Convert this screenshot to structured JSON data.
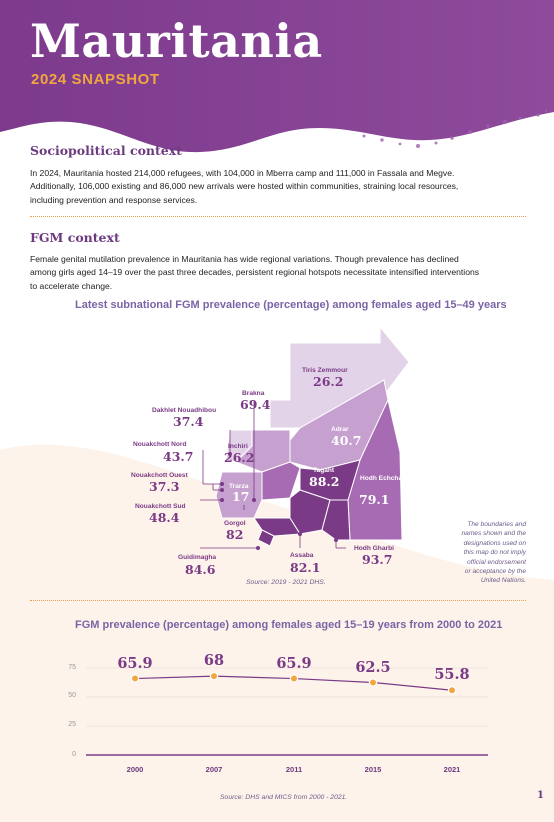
{
  "header": {
    "title": "Mauritania",
    "subtitle": "2024 SNAPSHOT"
  },
  "sociopolitical": {
    "heading": "Sociopolitical context",
    "lines": [
      "In 2024, Mauritania hosted 214,000 refugees, with 104,000 in Mberra camp and 111,000 in Fassala and Megve.",
      "Additionally, 106,000 existing and 86,000 new arrivals were hosted within communities, straining local resources,",
      "including prevention and response services."
    ]
  },
  "fgm_context": {
    "heading": "FGM context",
    "lines": [
      "Female genital mutilation prevalence in Mauritania has wide regional variations. Though prevalence has declined",
      "among girls aged 14–19 over the past three decades, persistent regional hotspots necessitate intensified interventions",
      "to accelerate change."
    ]
  },
  "map": {
    "title": "Latest subnational FGM prevalence (percentage) among females aged 15–49 years",
    "regions": [
      {
        "name": "Tiris Zemmour",
        "value": "26.2"
      },
      {
        "name": "Brakna",
        "value": "69.4"
      },
      {
        "name": "Dakhlet Nouadhibou",
        "value": "37.4"
      },
      {
        "name": "Adrar",
        "value": "40.7"
      },
      {
        "name": "Inchiri",
        "value": "26.2"
      },
      {
        "name": "Nouakchott Nord",
        "value": "43.7"
      },
      {
        "name": "Tagant",
        "value": "88.2"
      },
      {
        "name": "Nouakchott Ouest",
        "value": "37.3"
      },
      {
        "name": "Trarza",
        "value": "17"
      },
      {
        "name": "Hodh Echchargui",
        "value": "79.1"
      },
      {
        "name": "Nouakchott Sud",
        "value": "48.4"
      },
      {
        "name": "Gorgol",
        "value": "82"
      },
      {
        "name": "Guidimagha",
        "value": "84.6"
      },
      {
        "name": "Assaba",
        "value": "82.1"
      },
      {
        "name": "Hodh Gharbi",
        "value": "93.7"
      }
    ],
    "note": [
      "The boundaries and",
      "names shown and the",
      "designations used on",
      "this map do not imply",
      "official endorsement",
      "or acceptance by the",
      "United Nations."
    ],
    "source": "Source: 2019 - 2021 DHS.",
    "colors": {
      "light": "#e3d3e8",
      "mid": "#c6a0cf",
      "strong": "#a66bb3",
      "dark": "#7b3a86"
    }
  },
  "chart_data": {
    "type": "line",
    "title": "FGM prevalence (percentage) among females aged 15–19 years from 2000 to 2021",
    "categories": [
      "2000",
      "2007",
      "2011",
      "2015",
      "2021"
    ],
    "values": [
      65.9,
      68,
      65.9,
      62.5,
      55.8
    ],
    "value_labels": [
      "65.9",
      "68",
      "65.9",
      "62.5",
      "55.8"
    ],
    "yticks": [
      "75",
      "50",
      "25",
      "0"
    ],
    "ylim": [
      0,
      75
    ],
    "grid": true,
    "line_color": "#7b3a86",
    "marker_color": "#f2a640",
    "source": "Source: DHS and MICS from 2000 - 2021."
  },
  "page_number": "1",
  "colors": {
    "primary": "#7b3a86",
    "accent": "#f2a640",
    "heading": "#6d3a7f",
    "chart_title": "#7a64a6"
  }
}
